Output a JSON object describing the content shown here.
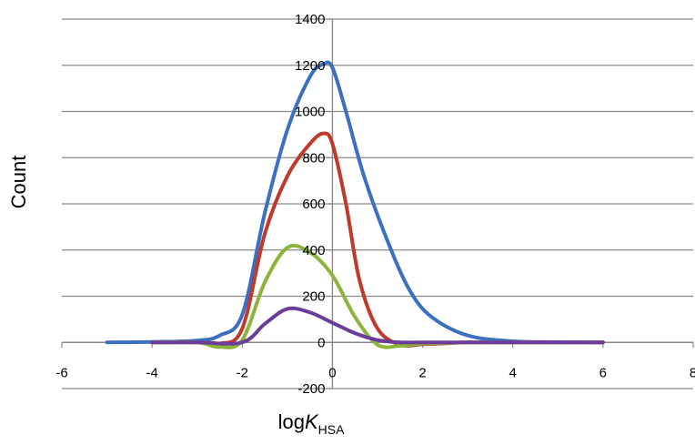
{
  "chart_data": {
    "type": "line",
    "title": "",
    "xlabel": "logK",
    "xlabel_sub": "HSA",
    "ylabel": "Count",
    "xlim": [
      -6,
      8
    ],
    "ylim": [
      -200,
      1400
    ],
    "x_ticks": [
      -6,
      -4,
      -2,
      0,
      2,
      4,
      6,
      8
    ],
    "y_ticks": [
      -200,
      0,
      200,
      400,
      600,
      800,
      1000,
      1200,
      1400
    ],
    "grid": "horizontal",
    "legend": "none",
    "series": [
      {
        "color": "#3b6fbf",
        "x": [
          -5,
          -4,
          -3,
          -2.5,
          -2,
          -1.5,
          -1,
          -0.5,
          -0.2,
          0,
          0.3,
          0.7,
          1.2,
          1.7,
          2.2,
          3,
          4,
          5,
          6
        ],
        "y": [
          0,
          2,
          8,
          30,
          120,
          560,
          920,
          1150,
          1205,
          1190,
          1000,
          720,
          450,
          230,
          110,
          30,
          5,
          1,
          0
        ]
      },
      {
        "color": "#c0392b",
        "x": [
          -4,
          -3,
          -2.5,
          -2,
          -1.5,
          -1,
          -0.5,
          -0.2,
          0,
          0.3,
          0.6,
          1,
          1.5,
          2,
          2.5,
          3,
          4,
          6
        ],
        "y": [
          0,
          0,
          -5,
          60,
          470,
          720,
          860,
          905,
          860,
          600,
          270,
          60,
          -10,
          -8,
          -4,
          0,
          0,
          0
        ]
      },
      {
        "color": "#8bb43a",
        "x": [
          -4,
          -3,
          -2.5,
          -2,
          -1.5,
          -1,
          -0.5,
          0,
          0.5,
          1,
          1.5,
          2,
          3,
          4
        ],
        "y": [
          0,
          0,
          -20,
          10,
          260,
          410,
          390,
          290,
          110,
          -10,
          -15,
          -5,
          0,
          0
        ]
      },
      {
        "color": "#6a3d9a",
        "x": [
          -4,
          -3,
          -2,
          -1.5,
          -1,
          -0.5,
          0,
          0.5,
          1,
          1.5,
          2,
          4,
          6
        ],
        "y": [
          0,
          0,
          0,
          80,
          145,
          130,
          85,
          40,
          10,
          0,
          0,
          0,
          0
        ]
      }
    ]
  }
}
